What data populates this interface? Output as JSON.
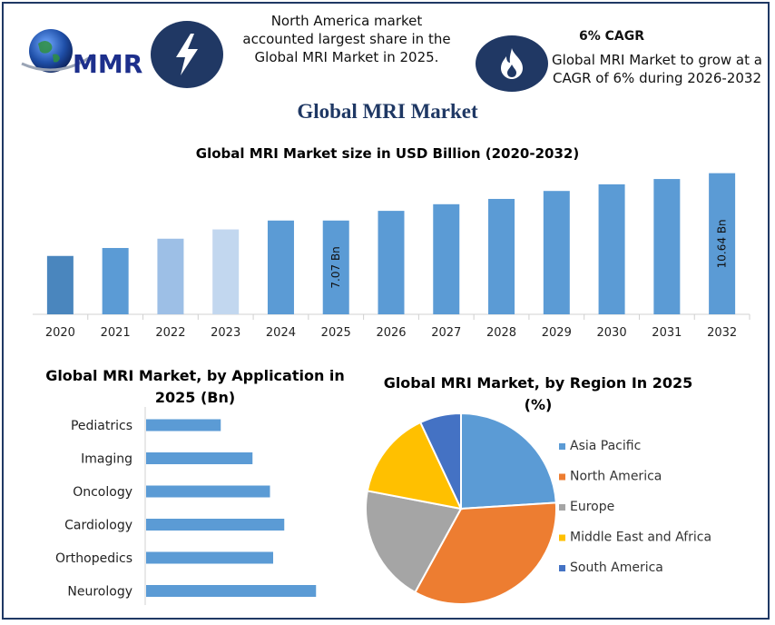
{
  "header": {
    "logo_text": "MMR",
    "left_note": "North America market accounted largest share in the Global MRI Market in 2025.",
    "cagr_heading": "6% CAGR",
    "cagr_note": "Global MRI Market to grow at a CAGR of 6% during 2026-2032",
    "icons": [
      "lightning-bolt-icon",
      "flame-icon"
    ]
  },
  "main_title": "Global MRI Market",
  "colors": {
    "navy": "#203864",
    "bar_blue": "#5b9bd5",
    "border": "#1f3864"
  },
  "chart_data": [
    {
      "type": "bar",
      "title": "Global MRI Market size in USD Billion (2020-2032)",
      "categories": [
        "2020",
        "2021",
        "2022",
        "2023",
        "2024",
        "2025",
        "2026",
        "2027",
        "2028",
        "2029",
        "2030",
        "2031",
        "2032"
      ],
      "values": [
        4.4,
        5.0,
        5.7,
        6.4,
        7.07,
        7.07,
        7.8,
        8.3,
        8.7,
        9.3,
        9.8,
        10.2,
        10.64
      ],
      "bar_colors": [
        "#4a86be",
        "#5b9bd5",
        "#9dbfe6",
        "#c2d7ef",
        "#5b9bd5",
        "#5b9bd5",
        "#5b9bd5",
        "#5b9bd5",
        "#5b9bd5",
        "#5b9bd5",
        "#5b9bd5",
        "#5b9bd5",
        "#5b9bd5"
      ],
      "data_labels": [
        "",
        "",
        "",
        "",
        "",
        "7.07 Bn",
        "",
        "",
        "",
        "",
        "",
        "",
        "10.64 Bn"
      ],
      "xlabel": "",
      "ylabel": "",
      "ylim": [
        0,
        11.3
      ],
      "grid": false,
      "legend": "none"
    },
    {
      "type": "bar",
      "orientation": "horizontal",
      "title": "Global MRI Market, by Application in 2025 (Bn)",
      "categories": [
        "Pediatrics",
        "Imaging",
        "Oncology",
        "Cardiology",
        "Orthopedics",
        "Neurology"
      ],
      "values": [
        0.47,
        0.67,
        0.78,
        0.87,
        0.8,
        1.07
      ],
      "xlim": [
        0,
        1.2
      ],
      "color": "#5b9bd5",
      "grid": false,
      "legend": "none"
    },
    {
      "type": "pie",
      "title": "Global MRI Market, by Region In 2025 (%)",
      "labels": [
        "Asia Pacific",
        "North America",
        "Europe",
        "Middle East and Africa",
        "South America"
      ],
      "values": [
        24,
        34,
        20,
        15,
        7
      ],
      "colors": [
        "#5b9bd5",
        "#ed7d31",
        "#a5a5a5",
        "#ffc000",
        "#4472c4"
      ],
      "legend": "right"
    }
  ]
}
